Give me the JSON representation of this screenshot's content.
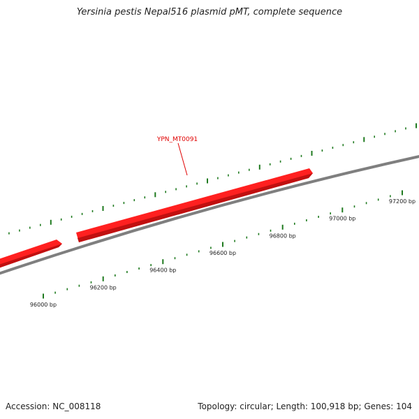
{
  "title": "Yersinia pestis Nepal516 plasmid pMT, complete sequence",
  "footer": {
    "accession": "Accession: NC_008118",
    "summary": "Topology: circular; Length: 100,918 bp; Genes: 104"
  },
  "colors": {
    "backbone": "#7f7f7f",
    "gene": "#ff2020",
    "gene_dark": "#c01010",
    "tick": "#1f7a1f",
    "gene_label": "#e00000"
  },
  "gene_label": "YPN_MT0091",
  "position_labels": [
    "96000 bp",
    "96200 bp",
    "96400 bp",
    "96600 bp",
    "96800 bp",
    "97000 bp",
    "97200 bp"
  ]
}
